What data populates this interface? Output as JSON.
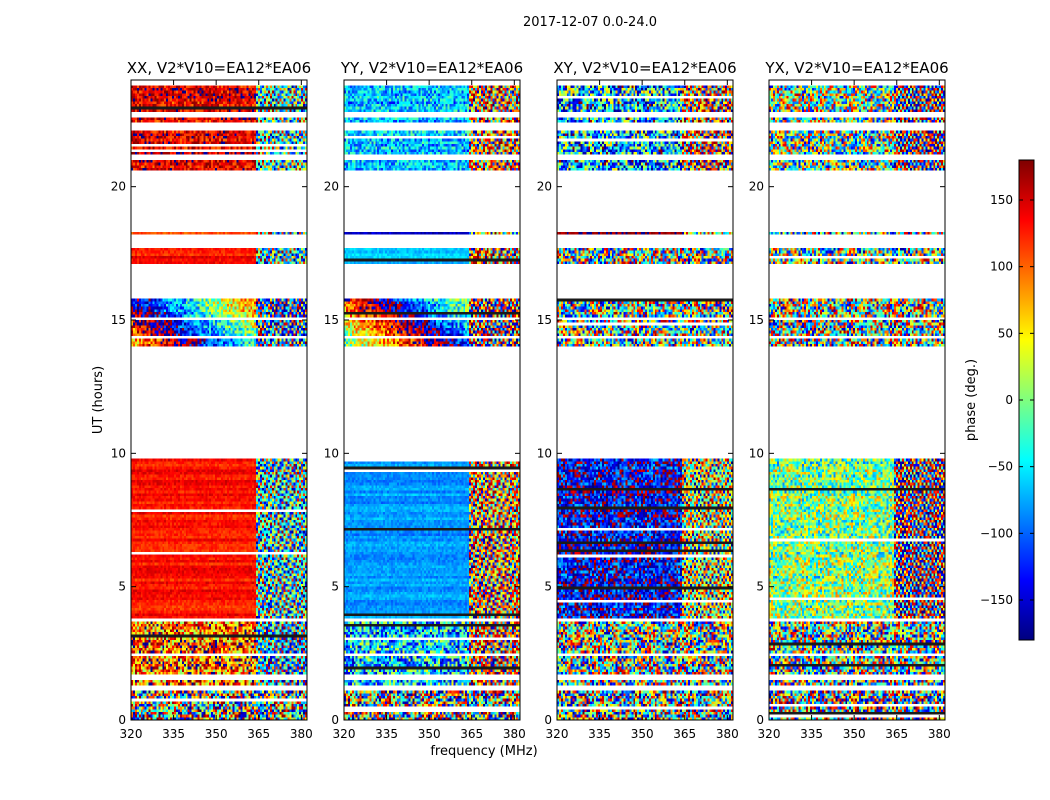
{
  "figure": {
    "suptitle": "2017-12-07 0.0-24.0"
  },
  "chart_data": {
    "type": "heatmap",
    "xlabel": "frequency (MHz)",
    "ylabel": "UT (hours)",
    "xlim": [
      320,
      382
    ],
    "ylim": [
      0,
      24
    ],
    "x_ticks": [
      320,
      335,
      350,
      365,
      380
    ],
    "y_ticks": [
      0,
      5,
      10,
      15,
      20
    ],
    "colorbar": {
      "label": "phase (deg.)",
      "range": [
        -180,
        180
      ],
      "ticks": [
        150,
        100,
        50,
        0,
        -50,
        -100,
        -150
      ],
      "tick_labels": [
        "150",
        "100",
        "50",
        "0",
        "−50",
        "−100",
        "−150"
      ],
      "colormap": "jet",
      "colors": [
        "#00007f",
        "#0000ff",
        "#007fff",
        "#00ffff",
        "#7fff7f",
        "#ffff00",
        "#ff7f00",
        "#ff0000",
        "#7f0000"
      ]
    },
    "flagged_hour_ranges": [
      [
        0.0,
        0.05
      ],
      [
        1.15,
        1.35
      ],
      [
        1.55,
        1.65
      ],
      [
        2.4,
        2.5
      ],
      [
        3.7,
        3.8
      ],
      [
        9.8,
        14.0
      ],
      [
        14.35,
        14.4
      ],
      [
        15.05,
        15.1
      ],
      [
        15.85,
        17.15
      ],
      [
        17.75,
        18.2
      ],
      [
        18.35,
        20.6
      ],
      [
        21.0,
        21.2
      ],
      [
        22.1,
        22.4
      ],
      [
        22.6,
        22.8
      ],
      [
        23.85,
        24.0
      ]
    ],
    "panels": [
      {
        "title": "XX, V2*V10=EA12*EA06",
        "description": "coherent phase near +130 deg below 364 MHz; noisy above",
        "bands": [
          {
            "from": 0.0,
            "to": 1.2,
            "phase": 0,
            "noise": 1.0
          },
          {
            "from": 1.2,
            "to": 3.7,
            "phase": 100,
            "noise": 0.55
          },
          {
            "from": 3.8,
            "to": 9.8,
            "phase": 130,
            "noise": 0.08
          },
          {
            "from": 14.0,
            "to": 15.9,
            "phase": 60,
            "noise": 0.35
          },
          {
            "from": 17.1,
            "to": 17.8,
            "phase": 130,
            "noise": 0.08
          },
          {
            "from": 18.2,
            "to": 18.35,
            "phase": 100,
            "noise": 0.1
          },
          {
            "from": 20.6,
            "to": 24.0,
            "phase": 140,
            "noise": 0.25
          }
        ]
      },
      {
        "title": "YY, V2*V10=EA12*EA06",
        "description": "coherent phase near -80 deg below 364 MHz; noisy above",
        "bands": [
          {
            "from": 0.0,
            "to": 1.2,
            "phase": 0,
            "noise": 1.0
          },
          {
            "from": 1.2,
            "to": 3.7,
            "phase": -60,
            "noise": 0.55
          },
          {
            "from": 3.8,
            "to": 9.8,
            "phase": -80,
            "noise": 0.08
          },
          {
            "from": 14.0,
            "to": 15.9,
            "phase": -20,
            "noise": 0.35
          },
          {
            "from": 17.1,
            "to": 17.8,
            "phase": -60,
            "noise": 0.08
          },
          {
            "from": 18.2,
            "to": 18.35,
            "phase": -150,
            "noise": 0.1
          },
          {
            "from": 20.6,
            "to": 24.0,
            "phase": -70,
            "noise": 0.3
          }
        ]
      },
      {
        "title": "XY, V2*V10=EA12*EA06",
        "description": "mostly random phase, bluish tint 4-9 h",
        "bands": [
          {
            "from": 0.0,
            "to": 1.2,
            "phase": 0,
            "noise": 1.0
          },
          {
            "from": 1.2,
            "to": 3.7,
            "phase": 0,
            "noise": 0.9
          },
          {
            "from": 3.8,
            "to": 9.8,
            "phase": -140,
            "noise": 0.4
          },
          {
            "from": 14.0,
            "to": 15.9,
            "phase": 0,
            "noise": 0.9
          },
          {
            "from": 17.1,
            "to": 17.8,
            "phase": 0,
            "noise": 0.9
          },
          {
            "from": 18.2,
            "to": 18.35,
            "phase": 180,
            "noise": 0.1
          },
          {
            "from": 20.6,
            "to": 24.0,
            "phase": -60,
            "noise": 0.7
          }
        ]
      },
      {
        "title": "YX, V2*V10=EA12*EA06",
        "description": "mostly random phase, greenish tint 4-9 h",
        "bands": [
          {
            "from": 0.0,
            "to": 1.2,
            "phase": 0,
            "noise": 1.0
          },
          {
            "from": 1.2,
            "to": 3.7,
            "phase": 0,
            "noise": 0.9
          },
          {
            "from": 3.8,
            "to": 9.8,
            "phase": 0,
            "noise": 0.45
          },
          {
            "from": 14.0,
            "to": 15.9,
            "phase": 0,
            "noise": 0.9
          },
          {
            "from": 17.1,
            "to": 17.8,
            "phase": 0,
            "noise": 0.9
          },
          {
            "from": 18.2,
            "to": 18.35,
            "phase": 0,
            "noise": 0.9
          },
          {
            "from": 20.6,
            "to": 24.0,
            "phase": 0,
            "noise": 0.8
          }
        ]
      }
    ]
  }
}
